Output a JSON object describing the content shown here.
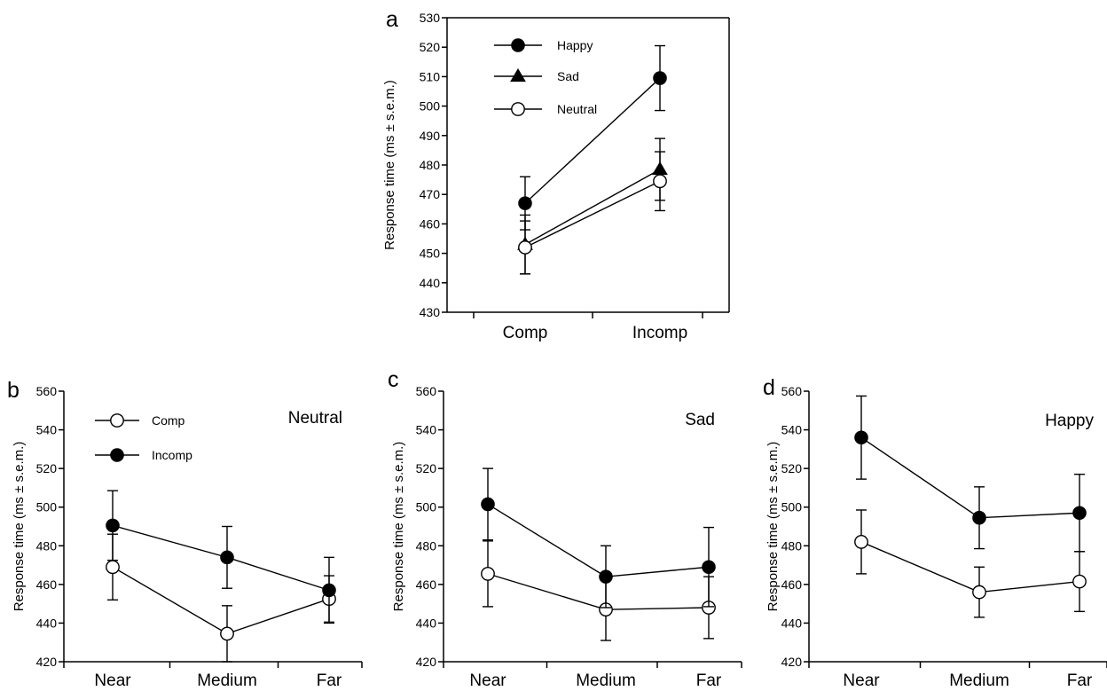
{
  "chart_data": [
    {
      "id": "a",
      "type": "line",
      "panel_label": "a",
      "title": "",
      "xlabel": "",
      "ylabel": "Response time (ms ± s.e.m.)",
      "categories": [
        "Comp",
        "Incomp"
      ],
      "ylim": [
        430,
        530
      ],
      "yticks": [
        430,
        440,
        450,
        460,
        470,
        480,
        490,
        500,
        510,
        520,
        530
      ],
      "grid": false,
      "legend_position": "top-left",
      "series": [
        {
          "name": "Happy",
          "marker": "filled-circle",
          "values": [
            467,
            509.5
          ],
          "errors": [
            9,
            11
          ]
        },
        {
          "name": "Sad",
          "marker": "filled-triangle",
          "values": [
            453,
            478.5
          ],
          "errors": [
            10,
            10.5
          ]
        },
        {
          "name": "Neutral",
          "marker": "open-circle",
          "values": [
            452,
            474.5
          ],
          "errors": [
            9,
            10
          ]
        }
      ]
    },
    {
      "id": "b",
      "type": "line",
      "panel_label": "b",
      "title": "Neutral",
      "xlabel": "",
      "ylabel": "Response time (ms ± s.e.m.)",
      "categories": [
        "Near",
        "Medium",
        "Far"
      ],
      "ylim": [
        420,
        560
      ],
      "yticks": [
        420,
        440,
        460,
        480,
        500,
        520,
        540,
        560
      ],
      "grid": false,
      "legend_position": "top-left",
      "series": [
        {
          "name": "Comp",
          "marker": "open-circle",
          "values": [
            469,
            434.5,
            452.5
          ],
          "errors": [
            17,
            14.5,
            12
          ]
        },
        {
          "name": "Incomp",
          "marker": "filled-circle",
          "values": [
            490.5,
            474,
            457
          ],
          "errors": [
            18,
            16,
            17
          ]
        }
      ]
    },
    {
      "id": "c",
      "type": "line",
      "panel_label": "c",
      "title": "Sad",
      "xlabel": "",
      "ylabel": "Response time (ms ± s.e.m.)",
      "categories": [
        "Near",
        "Medium",
        "Far"
      ],
      "ylim": [
        420,
        560
      ],
      "yticks": [
        420,
        440,
        460,
        480,
        500,
        520,
        540,
        560
      ],
      "grid": false,
      "legend_position": "",
      "series": [
        {
          "name": "Comp",
          "marker": "open-circle",
          "values": [
            465.5,
            447,
            448
          ],
          "errors": [
            17,
            16,
            16
          ]
        },
        {
          "name": "Incomp",
          "marker": "filled-circle",
          "values": [
            501.5,
            464,
            469
          ],
          "errors": [
            18.5,
            16,
            20.5
          ]
        }
      ]
    },
    {
      "id": "d",
      "type": "line",
      "panel_label": "d",
      "title": "Happy",
      "xlabel": "",
      "ylabel": "Response time (ms ± s.e.m.)",
      "categories": [
        "Near",
        "Medium",
        "Far"
      ],
      "ylim": [
        420,
        560
      ],
      "yticks": [
        420,
        440,
        460,
        480,
        500,
        520,
        540,
        560
      ],
      "grid": false,
      "legend_position": "",
      "series": [
        {
          "name": "Comp",
          "marker": "open-circle",
          "values": [
            482,
            456,
            461.5
          ],
          "errors": [
            16.5,
            13,
            15.5
          ]
        },
        {
          "name": "Incomp",
          "marker": "filled-circle",
          "values": [
            536,
            494.5,
            497
          ],
          "errors": [
            21.5,
            16,
            20
          ]
        }
      ]
    }
  ]
}
